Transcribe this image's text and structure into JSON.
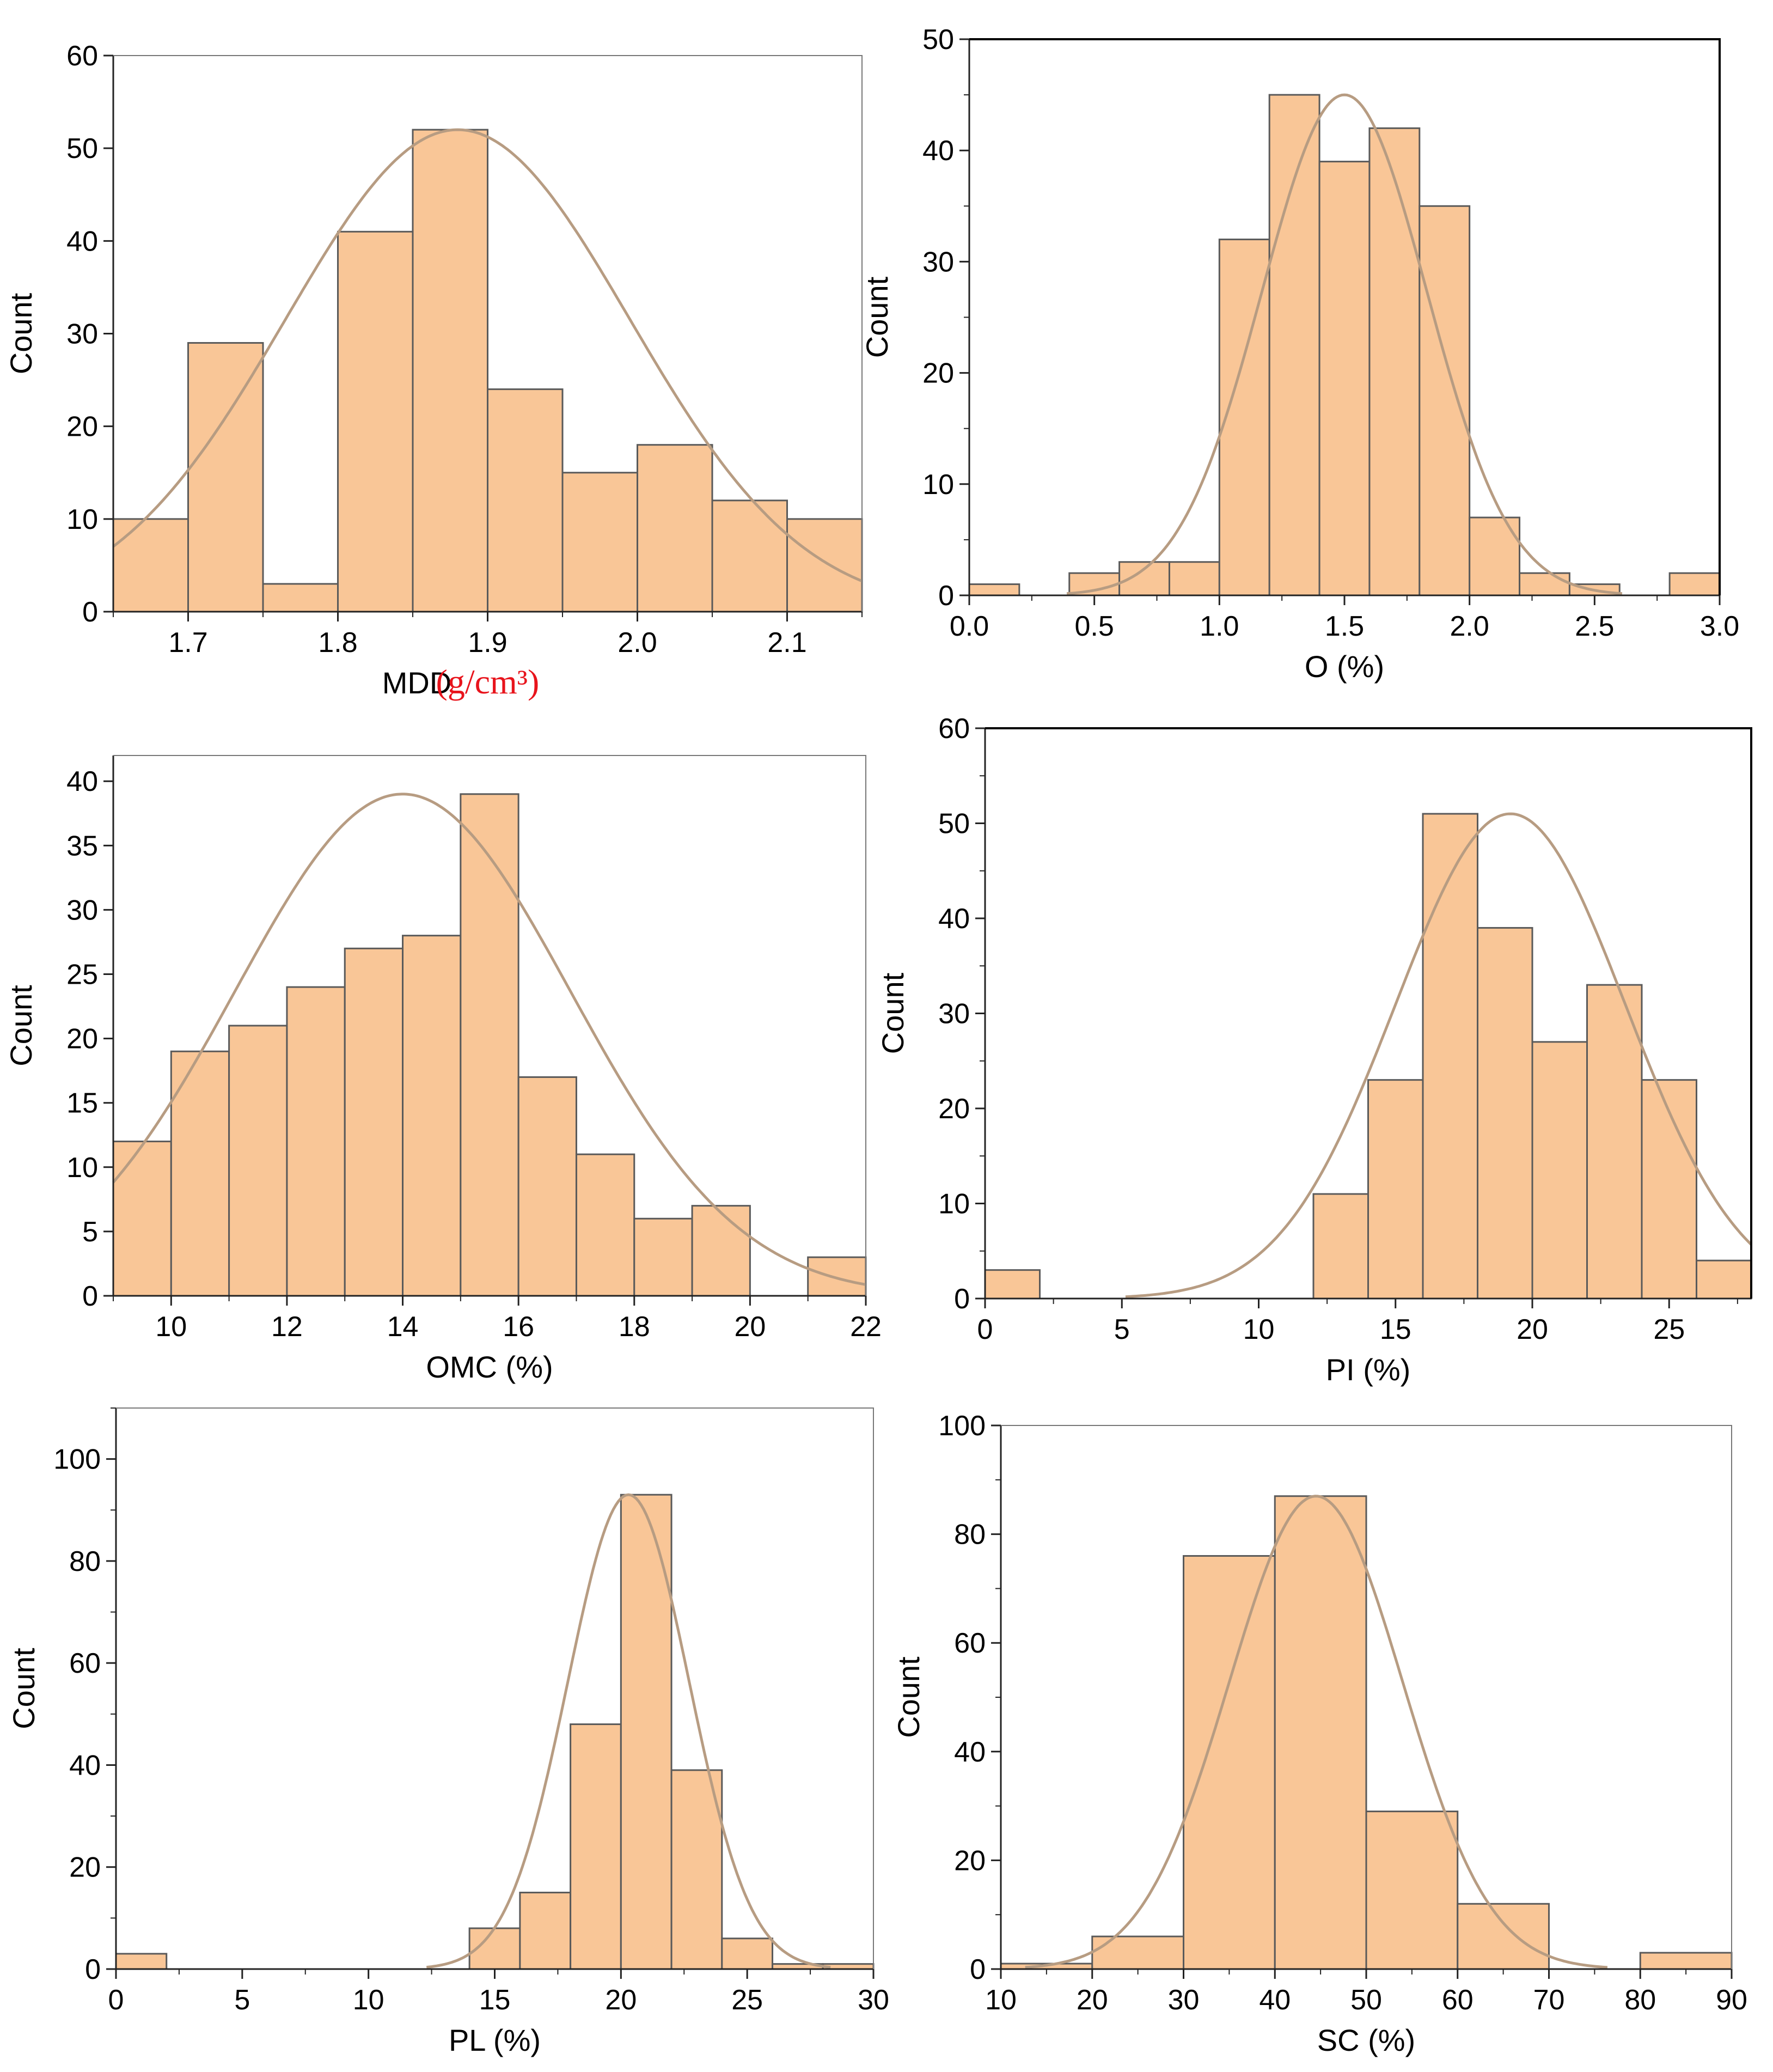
{
  "colors": {
    "bar_fill": "#f9c697",
    "bar_edge": "#5a5a5a",
    "curve": "#b79c82",
    "axis": "#222222",
    "unit_red": "#e8141c"
  },
  "chart_data": [
    {
      "type": "bar",
      "id": "mdd",
      "xlabel": "MDD",
      "xlabel_unit": "(g/cm³)",
      "ylabel": "Count",
      "xlim": [
        1.65,
        2.15
      ],
      "ylim": [
        0,
        60
      ],
      "xticks": [
        "1.7",
        "1.8",
        "1.9",
        "2.0",
        "2.1"
      ],
      "xtick_values": [
        1.7,
        1.8,
        1.9,
        2.0,
        2.1
      ],
      "yticks": [
        "0",
        "10",
        "20",
        "30",
        "40",
        "50",
        "60"
      ],
      "yminor": 10,
      "xminor": 0.05,
      "bins": [
        [
          1.65,
          1.7,
          10
        ],
        [
          1.7,
          1.75,
          29
        ],
        [
          1.75,
          1.8,
          3
        ],
        [
          1.8,
          1.85,
          41
        ],
        [
          1.85,
          1.9,
          52
        ],
        [
          1.9,
          1.95,
          24
        ],
        [
          1.95,
          2.0,
          15
        ],
        [
          2.0,
          2.05,
          18
        ],
        [
          2.05,
          2.1,
          12
        ],
        [
          2.1,
          2.15,
          10
        ]
      ],
      "normal_fit": {
        "mean": 1.88,
        "sd": 0.115,
        "peak": 52
      }
    },
    {
      "type": "bar",
      "id": "o",
      "xlabel": "O (%)",
      "ylabel": "Count",
      "xlim": [
        0,
        3
      ],
      "ylim": [
        0,
        50
      ],
      "xticks": [
        "0.0",
        "0.5",
        "1.0",
        "1.5",
        "2.0",
        "2.5",
        "3.0"
      ],
      "xtick_values": [
        0,
        0.5,
        1.0,
        1.5,
        2.0,
        2.5,
        3.0
      ],
      "yticks": [
        "0",
        "10",
        "20",
        "30",
        "40",
        "50"
      ],
      "yminor": 5,
      "xminor": 0.25,
      "bins": [
        [
          0.0,
          0.2,
          1
        ],
        [
          0.4,
          0.6,
          2
        ],
        [
          0.6,
          0.8,
          3
        ],
        [
          0.8,
          1.0,
          3
        ],
        [
          1.0,
          1.2,
          32
        ],
        [
          1.2,
          1.4,
          45
        ],
        [
          1.4,
          1.6,
          39
        ],
        [
          1.6,
          1.8,
          42
        ],
        [
          1.8,
          2.0,
          35
        ],
        [
          2.0,
          2.2,
          7
        ],
        [
          2.2,
          2.4,
          2
        ],
        [
          2.4,
          2.6,
          1
        ],
        [
          2.8,
          3.0,
          2
        ]
      ],
      "normal_fit": {
        "mean": 1.5,
        "sd": 0.33,
        "peak": 45
      }
    },
    {
      "type": "bar",
      "id": "omc",
      "xlabel": "OMC (%)",
      "ylabel": "Count",
      "xlim": [
        9,
        22
      ],
      "ylim": [
        0,
        42
      ],
      "xticks": [
        "10",
        "12",
        "14",
        "16",
        "18",
        "20",
        "22"
      ],
      "xtick_values": [
        10,
        12,
        14,
        16,
        18,
        20,
        22
      ],
      "yticks": [
        "0",
        "5",
        "10",
        "15",
        "20",
        "25",
        "30",
        "35",
        "40"
      ],
      "yminor": 5,
      "xminor": 1,
      "bins": [
        [
          9,
          10,
          12
        ],
        [
          10,
          11,
          19
        ],
        [
          11,
          12,
          21
        ],
        [
          12,
          13,
          24
        ],
        [
          13,
          14,
          27
        ],
        [
          14,
          15,
          28
        ],
        [
          15,
          16,
          39
        ],
        [
          16,
          17,
          17
        ],
        [
          17,
          18,
          11
        ],
        [
          18,
          19,
          6
        ],
        [
          19,
          20,
          7
        ],
        [
          21,
          22,
          3
        ]
      ],
      "normal_fit": {
        "mean": 14.0,
        "sd": 2.9,
        "peak": 39
      }
    },
    {
      "type": "bar",
      "id": "pi",
      "xlabel": "PI (%)",
      "ylabel": "Count",
      "xlim": [
        0,
        28
      ],
      "ylim": [
        0,
        60
      ],
      "xticks": [
        "0",
        "5",
        "10",
        "15",
        "20",
        "25"
      ],
      "xtick_values": [
        0,
        5,
        10,
        15,
        20,
        25
      ],
      "yticks": [
        "0",
        "10",
        "20",
        "30",
        "40",
        "50",
        "60"
      ],
      "yminor": 5,
      "xminor": 2.5,
      "bins": [
        [
          0,
          2,
          3
        ],
        [
          12,
          14,
          11
        ],
        [
          14,
          16,
          23
        ],
        [
          16,
          18,
          51
        ],
        [
          18,
          20,
          39
        ],
        [
          20,
          22,
          27
        ],
        [
          22,
          24,
          33
        ],
        [
          24,
          26,
          23
        ],
        [
          26,
          28,
          4
        ]
      ],
      "normal_fit": {
        "mean": 19.2,
        "sd": 4.2,
        "peak": 51
      }
    },
    {
      "type": "bar",
      "id": "pl",
      "xlabel": "PL (%)",
      "ylabel": "Count",
      "xlim": [
        0,
        30
      ],
      "ylim": [
        0,
        110
      ],
      "xticks": [
        "0",
        "5",
        "10",
        "15",
        "20",
        "25",
        "30"
      ],
      "xtick_values": [
        0,
        5,
        10,
        15,
        20,
        25,
        30
      ],
      "yticks": [
        "0",
        "20",
        "40",
        "60",
        "80",
        "100"
      ],
      "ytick_values": [
        0,
        20,
        40,
        60,
        80,
        100
      ],
      "yminor": 10,
      "xminor": 2.5,
      "bins": [
        [
          0,
          2,
          3
        ],
        [
          14,
          16,
          8
        ],
        [
          16,
          18,
          15
        ],
        [
          18,
          20,
          48
        ],
        [
          20,
          22,
          93
        ],
        [
          22,
          24,
          39
        ],
        [
          24,
          26,
          6
        ],
        [
          26,
          28,
          1
        ],
        [
          28,
          30,
          1
        ]
      ],
      "normal_fit": {
        "mean": 20.3,
        "sd": 2.4,
        "peak": 93
      }
    },
    {
      "type": "bar",
      "id": "sc",
      "xlabel": "SC (%)",
      "ylabel": "Count",
      "xlim": [
        10,
        90
      ],
      "ylim": [
        0,
        100
      ],
      "xticks": [
        "10",
        "20",
        "30",
        "40",
        "50",
        "60",
        "70",
        "80",
        "90"
      ],
      "xtick_values": [
        10,
        20,
        30,
        40,
        50,
        60,
        70,
        80,
        90
      ],
      "yticks": [
        "0",
        "20",
        "40",
        "60",
        "80",
        "100"
      ],
      "yminor": 10,
      "xminor": 5,
      "bins": [
        [
          10,
          20,
          1
        ],
        [
          20,
          30,
          6
        ],
        [
          30,
          40,
          76
        ],
        [
          40,
          50,
          87
        ],
        [
          50,
          60,
          29
        ],
        [
          60,
          70,
          12
        ],
        [
          80,
          90,
          3
        ]
      ],
      "normal_fit": {
        "mean": 44.5,
        "sd": 9.5,
        "peak": 87
      }
    }
  ]
}
